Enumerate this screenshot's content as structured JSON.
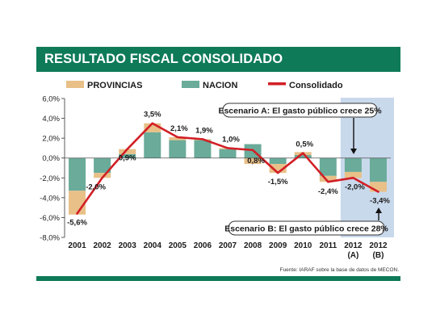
{
  "title": "RESULTADO FISCAL CONSOLIDADO",
  "source": "Fuente: IARAF sobre la base de datos de MECON.",
  "colors": {
    "provincias": "#e8c088",
    "nacion": "#6aab9a",
    "consolidado": "#d21f26",
    "highlight": "#c9d9ec",
    "header": "#0f7a58"
  },
  "chart_data": {
    "type": "bar",
    "stacked": true,
    "unit": "%",
    "categories": [
      {
        "line1": "2001",
        "line2": ""
      },
      {
        "line1": "2002",
        "line2": ""
      },
      {
        "line1": "2003",
        "line2": ""
      },
      {
        "line1": "2004",
        "line2": ""
      },
      {
        "line1": "2005",
        "line2": ""
      },
      {
        "line1": "2006",
        "line2": ""
      },
      {
        "line1": "2007",
        "line2": ""
      },
      {
        "line1": "2008",
        "line2": ""
      },
      {
        "line1": "2009",
        "line2": ""
      },
      {
        "line1": "2010",
        "line2": ""
      },
      {
        "line1": "2011",
        "line2": ""
      },
      {
        "line1": "2012",
        "line2": "(A)"
      },
      {
        "line1": "2012",
        "line2": "(B)"
      }
    ],
    "legend": [
      "PROVINCIAS",
      "NACION",
      "Consolidado"
    ],
    "series": [
      {
        "name": "NACION",
        "kind": "bar",
        "values": [
          -3.3,
          -1.5,
          0.4,
          2.6,
          1.8,
          1.8,
          0.9,
          1.4,
          -0.6,
          0.3,
          -1.8,
          -1.4,
          -2.4
        ]
      },
      {
        "name": "PROVINCIAS",
        "kind": "bar",
        "values": [
          -2.4,
          -0.5,
          0.5,
          0.9,
          0.3,
          0.1,
          0.1,
          -0.6,
          -0.9,
          0.3,
          -0.6,
          -0.6,
          -1.0
        ]
      },
      {
        "name": "Consolidado",
        "kind": "line",
        "values": [
          -5.6,
          -2.0,
          0.9,
          3.5,
          2.1,
          1.9,
          1.0,
          0.8,
          -1.5,
          0.5,
          -2.4,
          -2.0,
          -3.4
        ]
      }
    ],
    "value_labels": [
      "-5,6%",
      "-2,0%",
      "0,9%",
      "3,5%",
      "2,1%",
      "1,9%",
      "1,0%",
      "0,8%",
      "-1,5%",
      "0,5%",
      "-2,4%",
      "-2,0%",
      "-3,4%"
    ],
    "y_ticks": [
      {
        "value": 6,
        "label": "6,0%"
      },
      {
        "value": 4,
        "label": "4,0%"
      },
      {
        "value": 2,
        "label": "2,0%"
      },
      {
        "value": 0,
        "label": "0,0%"
      },
      {
        "value": -2,
        "label": "-2,0%"
      },
      {
        "value": -4,
        "label": "-4,0%"
      },
      {
        "value": -6,
        "label": "-6,0%"
      },
      {
        "value": -8,
        "label": "-8,0%"
      }
    ],
    "ylim": [
      -8,
      6
    ],
    "grid": false,
    "legend_position": "top",
    "annotations": {
      "scenario_a": "Escenario A: El gasto público crece 25%",
      "scenario_b": "Escenario B: El gasto público crece 28%"
    }
  }
}
